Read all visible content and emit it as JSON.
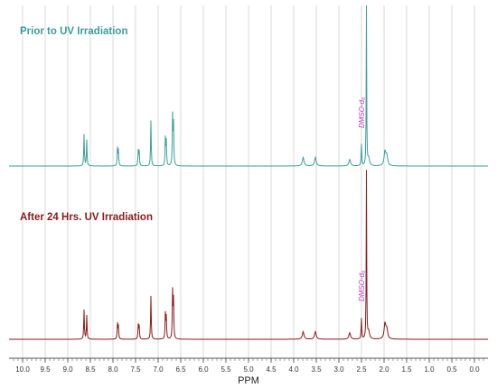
{
  "chart_data": {
    "type": "line",
    "xlabel": "PPM",
    "ylabel": "",
    "xlim": [
      10.3,
      -0.3
    ],
    "x_reversed": true,
    "grid": true,
    "x_ticks": [
      "10.0",
      "9.5",
      "9.0",
      "8.5",
      "8.0",
      "7.5",
      "7.0",
      "6.5",
      "6.0",
      "5.5",
      "5.0",
      "4.5",
      "4.0",
      "3.5",
      "3.0",
      "2.5",
      "2.0",
      "1.5",
      "1.0",
      "0.5",
      "0.0"
    ],
    "solvent_label": "DMSO-d₆",
    "solvent_ppm": 2.5,
    "series": [
      {
        "name": "Prior to UV Irradiation",
        "color": "#3a9e9a",
        "peaks": [
          {
            "ppm": 8.64,
            "height": 0.29
          },
          {
            "ppm": 8.58,
            "height": 0.24
          },
          {
            "ppm": 7.9,
            "height": 0.16
          },
          {
            "ppm": 7.88,
            "height": 0.14
          },
          {
            "ppm": 7.44,
            "height": 0.14
          },
          {
            "ppm": 7.42,
            "height": 0.13
          },
          {
            "ppm": 7.16,
            "height": 0.42
          },
          {
            "ppm": 6.84,
            "height": 0.25
          },
          {
            "ppm": 6.82,
            "height": 0.22
          },
          {
            "ppm": 6.68,
            "height": 0.45
          },
          {
            "ppm": 6.66,
            "height": 0.37
          },
          {
            "ppm": 3.79,
            "height": 0.08
          },
          {
            "ppm": 3.52,
            "height": 0.08
          },
          {
            "ppm": 2.76,
            "height": 0.06
          },
          {
            "ppm": 2.5,
            "height": 0.2
          },
          {
            "ppm": 2.39,
            "height": 1.5
          },
          {
            "ppm": 2.34,
            "height": 0.07
          },
          {
            "ppm": 1.98,
            "height": 0.13
          },
          {
            "ppm": 1.94,
            "height": 0.09
          }
        ]
      },
      {
        "name": "After 24 Hrs. UV Irradiation",
        "color": "#8b1a1a",
        "peaks": [
          {
            "ppm": 8.64,
            "height": 0.27
          },
          {
            "ppm": 8.58,
            "height": 0.22
          },
          {
            "ppm": 7.9,
            "height": 0.14
          },
          {
            "ppm": 7.88,
            "height": 0.12
          },
          {
            "ppm": 7.44,
            "height": 0.13
          },
          {
            "ppm": 7.42,
            "height": 0.12
          },
          {
            "ppm": 7.16,
            "height": 0.4
          },
          {
            "ppm": 6.84,
            "height": 0.23
          },
          {
            "ppm": 6.82,
            "height": 0.2
          },
          {
            "ppm": 6.68,
            "height": 0.43
          },
          {
            "ppm": 6.66,
            "height": 0.35
          },
          {
            "ppm": 3.79,
            "height": 0.07
          },
          {
            "ppm": 3.52,
            "height": 0.07
          },
          {
            "ppm": 2.76,
            "height": 0.06
          },
          {
            "ppm": 2.5,
            "height": 0.19
          },
          {
            "ppm": 2.39,
            "height": 1.55
          },
          {
            "ppm": 2.34,
            "height": 0.07
          },
          {
            "ppm": 1.98,
            "height": 0.14
          },
          {
            "ppm": 1.94,
            "height": 0.09
          }
        ]
      }
    ]
  }
}
